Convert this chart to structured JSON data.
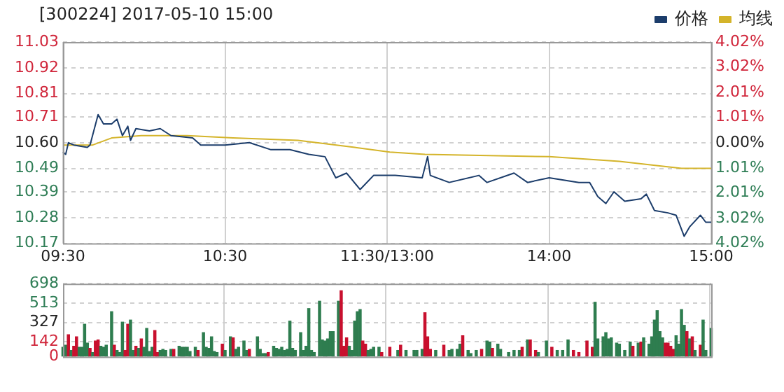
{
  "chart_data": [
    {
      "type": "line",
      "title": "[300224] 2017-05-10 15:00",
      "categories": [
        "09:30",
        null,
        null,
        null,
        null,
        null,
        null,
        null,
        null,
        null,
        null,
        null,
        null,
        null,
        null,
        null,
        null,
        null,
        null,
        null,
        null,
        null,
        null,
        null,
        null,
        null,
        null,
        null,
        null,
        null,
        null,
        null,
        null,
        null,
        null,
        null,
        null,
        null,
        null,
        null,
        null,
        null,
        null,
        null,
        null,
        null,
        null,
        null,
        null,
        null,
        null,
        null,
        null,
        null,
        null,
        null,
        null,
        null,
        null,
        null,
        "10:30",
        null,
        null,
        null,
        null,
        null,
        null,
        null,
        null,
        null,
        null,
        null,
        null,
        null,
        null,
        null,
        null,
        null,
        null,
        null,
        null,
        null,
        null,
        null,
        null,
        null,
        null,
        null,
        null,
        null,
        null,
        null,
        null,
        null,
        null,
        null,
        null,
        null,
        null,
        null,
        null,
        null,
        null,
        null,
        null,
        null,
        null,
        null,
        null,
        null,
        null,
        null,
        null,
        null,
        null,
        null,
        null,
        null,
        null,
        null,
        "11:30/13:00",
        null,
        null,
        null,
        null,
        null,
        null,
        null,
        null,
        null,
        null,
        null,
        null,
        null,
        null,
        null,
        null,
        null,
        null,
        null,
        null,
        null,
        null,
        null,
        null,
        null,
        null,
        null,
        null,
        null,
        null,
        null,
        null,
        null,
        null,
        null,
        null,
        null,
        null,
        null,
        null,
        null,
        null,
        null,
        null,
        null,
        null,
        null,
        null,
        null,
        null,
        null,
        null,
        null,
        null,
        null,
        null,
        null,
        null,
        null,
        "14:00",
        null,
        null,
        null,
        null,
        null,
        null,
        null,
        null,
        null,
        null,
        null,
        null,
        null,
        null,
        null,
        null,
        null,
        null,
        null,
        null,
        null,
        null,
        null,
        null,
        null,
        null,
        null,
        null,
        null,
        null,
        null,
        null,
        null,
        null,
        null,
        null,
        null,
        null,
        null,
        null,
        null,
        null,
        null,
        null,
        null,
        null,
        null,
        null,
        null,
        null,
        null,
        null,
        null,
        null,
        null,
        null,
        null,
        null,
        null,
        "15:00"
      ],
      "ylim": [
        10.17,
        11.03
      ],
      "yticks": [
        11.03,
        10.92,
        10.81,
        10.71,
        {
          "value": 10.6,
          "label": "10.60"
        },
        10.49,
        10.39,
        10.28,
        10.17
      ],
      "y2lim": [
        -4.02,
        4.02
      ],
      "y2ticks": [
        {
          "value": 4.02,
          "label": "4.02%"
        },
        {
          "value": 3.02,
          "label": "3.02%"
        },
        {
          "value": 2.01,
          "label": "2.01%"
        },
        {
          "value": 1.01,
          "label": "1.01%"
        },
        {
          "value": 0,
          "label": "0.00%"
        },
        {
          "value": -1.01,
          "label": "1.01%"
        },
        {
          "value": -2.01,
          "label": "2.01%"
        },
        {
          "value": -3.02,
          "label": "3.02%"
        },
        {
          "value": -4.02,
          "label": "4.02%"
        }
      ],
      "grid": true,
      "legend": "top right",
      "marker": "none",
      "series": [
        {
          "name": "价格",
          "color": "#1c3d6b",
          "values": [
            10.56,
            10.55,
            10.6,
            null,
            10.59,
            null,
            null,
            null,
            null,
            10.58,
            10.59,
            null,
            null,
            10.72,
            null,
            10.68,
            null,
            null,
            10.68,
            null,
            10.7,
            null,
            10.63,
            null,
            10.67,
            10.61,
            null,
            10.66,
            null,
            null,
            null,
            null,
            10.65,
            null,
            null,
            null,
            10.66,
            null,
            null,
            null,
            10.63,
            null,
            null,
            null,
            null,
            null,
            null,
            null,
            10.62,
            null,
            null,
            10.59,
            null,
            null,
            null,
            null,
            null,
            null,
            null,
            null,
            10.59,
            null,
            null,
            null,
            null,
            null,
            null,
            null,
            null,
            10.6,
            null,
            null,
            null,
            null,
            null,
            null,
            null,
            10.57,
            null,
            null,
            null,
            null,
            null,
            null,
            10.57,
            null,
            null,
            null,
            null,
            null,
            null,
            10.55,
            null,
            null,
            null,
            null,
            null,
            10.54,
            null,
            null,
            null,
            10.45,
            null,
            null,
            null,
            10.47,
            null,
            null,
            null,
            null,
            10.4,
            null,
            null,
            null,
            null,
            10.46,
            null,
            null,
            null,
            null,
            null,
            10.46,
            null,
            10.46,
            null,
            null,
            null,
            null,
            null,
            null,
            null,
            null,
            null,
            10.45,
            null,
            10.54,
            10.46,
            null,
            null,
            null,
            null,
            null,
            null,
            10.43,
            null,
            null,
            null,
            null,
            null,
            null,
            null,
            null,
            null,
            null,
            10.46,
            null,
            null,
            10.43,
            null,
            null,
            null,
            null,
            null,
            null,
            null,
            null,
            null,
            10.47,
            null,
            null,
            null,
            null,
            10.43,
            null,
            null,
            null,
            null,
            null,
            null,
            null,
            10.45,
            null,
            null,
            null,
            null,
            null,
            null,
            null,
            null,
            null,
            null,
            10.43,
            null,
            null,
            null,
            10.43,
            null,
            null,
            10.37,
            null,
            null,
            10.34,
            null,
            null,
            10.39,
            null,
            null,
            null,
            10.35,
            null,
            null,
            null,
            null,
            null,
            10.36,
            null,
            10.38,
            null,
            null,
            10.31,
            null,
            null,
            null,
            null,
            10.3,
            null,
            null,
            10.29,
            null,
            null,
            10.2,
            null,
            10.24,
            null,
            null,
            null,
            10.29,
            null,
            10.26,
            null,
            10.26
          ]
        },
        {
          "name": "均线",
          "color": "#d4b42a",
          "values": [
            10.59,
            null,
            null,
            null,
            null,
            null,
            null,
            null,
            null,
            null,
            null,
            10.59,
            null,
            null,
            null,
            null,
            null,
            null,
            10.62,
            null,
            null,
            null,
            null,
            null,
            null,
            null,
            null,
            null,
            null,
            10.63,
            null,
            null,
            null,
            null,
            null,
            null,
            null,
            null,
            null,
            null,
            null,
            null,
            null,
            null,
            null,
            null,
            10.63,
            null,
            null,
            null,
            null,
            null,
            null,
            null,
            null,
            null,
            null,
            null,
            null,
            null,
            null,
            null,
            null,
            10.62,
            null,
            null,
            null,
            null,
            null,
            null,
            null,
            null,
            null,
            null,
            null,
            null,
            null,
            null,
            null,
            null,
            null,
            null,
            null,
            null,
            null,
            null,
            null,
            10.61,
            null,
            null,
            null,
            null,
            null,
            null,
            null,
            null,
            null,
            null,
            null,
            null,
            null,
            null,
            null,
            null,
            null,
            null,
            null,
            null,
            10.58,
            null,
            null,
            null,
            null,
            null,
            null,
            null,
            null,
            null,
            null,
            null,
            null,
            10.56,
            null,
            null,
            null,
            null,
            null,
            null,
            null,
            null,
            null,
            null,
            null,
            null,
            10.55,
            null,
            null,
            null,
            null,
            null,
            null,
            null,
            null,
            null,
            null,
            null,
            null,
            null,
            null,
            null,
            null,
            null,
            null,
            null,
            null,
            null,
            null,
            null,
            null,
            null,
            null,
            null,
            null,
            null,
            null,
            null,
            null,
            null,
            null,
            null,
            null,
            null,
            null,
            null,
            null,
            null,
            null,
            null,
            null,
            null,
            10.54,
            null,
            null,
            null,
            null,
            null,
            null,
            null,
            null,
            null,
            null,
            null,
            null,
            null,
            null,
            null,
            null,
            null,
            null,
            null,
            null,
            null,
            null,
            null,
            null,
            null,
            10.52,
            null,
            null,
            null,
            null,
            null,
            null,
            null,
            null,
            null,
            null,
            null,
            null,
            null,
            null,
            null,
            null,
            null,
            null,
            null,
            null,
            null,
            null,
            10.49,
            null,
            null,
            null,
            null,
            null,
            null,
            null,
            null,
            null,
            null,
            10.49
          ]
        }
      ]
    },
    {
      "type": "bar",
      "categories": [
        null,
        null,
        null,
        null,
        null,
        null,
        null,
        null,
        null,
        null,
        null,
        null,
        null,
        null,
        null,
        null,
        null,
        null,
        null,
        null,
        null,
        null,
        null,
        null,
        null,
        null,
        null,
        null,
        null,
        null,
        null,
        null,
        null,
        null,
        null,
        null,
        null,
        null,
        null,
        null,
        null,
        null,
        null,
        null,
        null,
        null,
        null,
        null,
        null,
        null,
        null,
        null,
        null,
        null,
        null,
        null,
        null,
        null,
        null,
        null,
        null,
        null,
        null,
        null,
        null,
        null,
        null,
        null,
        null,
        null,
        null,
        null,
        null,
        null,
        null,
        null,
        null,
        null,
        null,
        null,
        null,
        null,
        null,
        null,
        null,
        null,
        null,
        null,
        null,
        null,
        null,
        null,
        null,
        null,
        null,
        null,
        null,
        null,
        null,
        null,
        null,
        null,
        null,
        null,
        null,
        null,
        null,
        null,
        null,
        null,
        null,
        null,
        null,
        null,
        null,
        null,
        null,
        null,
        null,
        null,
        null,
        null,
        null,
        null,
        null,
        null,
        null,
        null,
        null,
        null,
        null,
        null,
        null,
        null,
        null,
        null,
        null,
        null,
        null,
        null,
        null,
        null,
        null,
        null,
        null,
        null,
        null,
        null,
        null,
        null,
        null,
        null,
        null,
        null,
        null,
        null,
        null,
        null,
        null,
        null,
        null,
        null,
        null,
        null,
        null,
        null,
        null,
        null,
        null,
        null,
        null,
        null,
        null,
        null,
        null,
        null,
        null,
        null,
        null,
        null,
        null,
        null,
        null,
        null,
        null,
        null,
        null,
        null,
        null,
        null,
        null,
        null,
        null,
        null,
        null,
        null,
        null,
        null,
        null,
        null,
        null,
        null,
        null,
        null,
        null,
        null,
        null,
        null,
        null,
        null,
        null,
        null,
        null,
        null,
        null,
        null,
        null,
        null,
        null,
        null,
        null,
        null,
        null,
        null,
        null,
        null,
        null,
        null,
        null,
        null,
        null,
        null,
        null,
        null,
        null,
        null,
        null,
        null,
        null,
        null,
        null
      ],
      "ylim": [
        0,
        698
      ],
      "yticks": [
        0,
        142,
        327,
        513,
        698
      ],
      "grid": true,
      "values": [
        90,
        110,
        210,
        60,
        100,
        190,
        90,
        90,
        310,
        130,
        80,
        40,
        150,
        160,
        100,
        90,
        110,
        null,
        430,
        110,
        60,
        40,
        330,
        60,
        310,
        350,
        60,
        100,
        80,
        170,
        90,
        270,
        50,
        90,
        250,
        40,
        60,
        70,
        60,
        null,
        70,
        70,
        null,
        100,
        90,
        90,
        90,
        50,
        null,
        90,
        60,
        null,
        230,
        90,
        80,
        190,
        50,
        40,
        null,
        120,
        60,
        null,
        190,
        180,
        70,
        90,
        null,
        150,
        60,
        70,
        null,
        null,
        190,
        70,
        30,
        30,
        40,
        null,
        100,
        80,
        70,
        90,
        60,
        70,
        340,
        80,
        60,
        null,
        230,
        60,
        100,
        460,
        60,
        40,
        null,
        530,
        160,
        150,
        170,
        240,
        240,
        null,
        530,
        630,
        100,
        180,
        100,
        60,
        340,
        430,
        450,
        150,
        120,
        60,
        70,
        90,
        null,
        90,
        40,
        null,
        null,
        90,
        null,
        null,
        60,
        110,
        null,
        60,
        null,
        null,
        60,
        60,
        null,
        70,
        420,
        190,
        70,
        null,
        60,
        null,
        null,
        110,
        null,
        60,
        70,
        null,
        70,
        120,
        200,
        null,
        60,
        30,
        null,
        60,
        null,
        70,
        null,
        150,
        140,
        80,
        null,
        120,
        70,
        null,
        null,
        40,
        null,
        60,
        null,
        60,
        90,
        null,
        160,
        160,
        null,
        60,
        40,
        null,
        null,
        150,
        null,
        90,
        null,
        60,
        null,
        60,
        null,
        160,
        null,
        60,
        null,
        40,
        null,
        null,
        150,
        null,
        90,
        520,
        170,
        null,
        190,
        230,
        170,
        180,
        null,
        130,
        120,
        null,
        60,
        null,
        140,
        100,
        null,
        130,
        140,
        180,
        null,
        120,
        190,
        350,
        440,
        240,
        180,
        130,
        130,
        100,
        70,
        200,
        120,
        450,
        300,
        240,
        170,
        190,
        60,
        null,
        110,
        350,
        60,
        null,
        270
      ],
      "colors": [
        "#2e7d4f",
        "#2e7d4f",
        "#c8102e",
        "#2e7d4f",
        "#c8102e",
        "#c8102e",
        "#2e7d4f",
        "#2e7d4f",
        "#2e7d4f",
        "#2e7d4f",
        "#c8102e",
        "#2e7d4f",
        "#c8102e",
        "#c8102e",
        "#2e7d4f",
        "#2e7d4f",
        "#2e7d4f",
        null,
        "#2e7d4f",
        "#c8102e",
        "#2e7d4f",
        "#2e7d4f",
        "#2e7d4f",
        "#c8102e",
        "#c8102e",
        "#2e7d4f",
        "#2e7d4f",
        "#c8102e",
        "#2e7d4f",
        "#c8102e",
        "#2e7d4f",
        "#2e7d4f",
        "#2e7d4f",
        "#2e7d4f",
        "#c8102e",
        "#c8102e",
        "#2e7d4f",
        "#2e7d4f",
        "#2e7d4f",
        null,
        "#2e7d4f",
        "#c8102e",
        null,
        "#2e7d4f",
        "#2e7d4f",
        "#2e7d4f",
        "#2e7d4f",
        "#2e7d4f",
        null,
        "#2e7d4f",
        "#c8102e",
        null,
        "#2e7d4f",
        "#2e7d4f",
        "#2e7d4f",
        "#2e7d4f",
        "#2e7d4f",
        "#2e7d4f",
        null,
        "#c8102e",
        "#2e7d4f",
        null,
        "#2e7d4f",
        "#c8102e",
        "#2e7d4f",
        "#2e7d4f",
        null,
        "#2e7d4f",
        "#2e7d4f",
        "#c8102e",
        null,
        null,
        "#2e7d4f",
        "#2e7d4f",
        "#2e7d4f",
        "#2e7d4f",
        "#c8102e",
        null,
        "#2e7d4f",
        "#2e7d4f",
        "#2e7d4f",
        "#2e7d4f",
        "#2e7d4f",
        "#2e7d4f",
        "#2e7d4f",
        "#2e7d4f",
        "#2e7d4f",
        null,
        "#2e7d4f",
        "#2e7d4f",
        "#2e7d4f",
        "#2e7d4f",
        "#2e7d4f",
        "#2e7d4f",
        null,
        "#2e7d4f",
        "#2e7d4f",
        "#2e7d4f",
        "#2e7d4f",
        "#2e7d4f",
        "#2e7d4f",
        null,
        "#2e7d4f",
        "#c8102e",
        "#c8102e",
        "#c8102e",
        "#2e7d4f",
        "#2e7d4f",
        "#2e7d4f",
        "#2e7d4f",
        "#2e7d4f",
        "#c8102e",
        "#c8102e",
        "#2e7d4f",
        "#2e7d4f",
        "#2e7d4f",
        null,
        "#2e7d4f",
        "#c8102e",
        null,
        null,
        "#c8102e",
        null,
        null,
        "#2e7d4f",
        "#c8102e",
        null,
        "#2e7d4f",
        null,
        null,
        "#2e7d4f",
        "#2e7d4f",
        null,
        "#2e7d4f",
        "#c8102e",
        "#c8102e",
        "#c8102e",
        null,
        "#2e7d4f",
        null,
        null,
        "#c8102e",
        null,
        "#2e7d4f",
        "#2e7d4f",
        null,
        "#2e7d4f",
        "#2e7d4f",
        "#c8102e",
        null,
        "#2e7d4f",
        "#2e7d4f",
        null,
        "#2e7d4f",
        null,
        "#c8102e",
        null,
        "#2e7d4f",
        "#2e7d4f",
        "#c8102e",
        null,
        "#2e7d4f",
        "#2e7d4f",
        null,
        null,
        "#2e7d4f",
        null,
        "#2e7d4f",
        null,
        "#2e7d4f",
        "#c8102e",
        null,
        "#2e7d4f",
        "#c8102e",
        null,
        "#c8102e",
        "#2e7d4f",
        null,
        null,
        "#2e7d4f",
        null,
        "#c8102e",
        null,
        "#2e7d4f",
        null,
        "#2e7d4f",
        null,
        "#2e7d4f",
        null,
        "#c8102e",
        null,
        "#c8102e",
        null,
        null,
        "#c8102e",
        null,
        "#c8102e",
        "#2e7d4f",
        "#2e7d4f",
        null,
        "#2e7d4f",
        "#2e7d4f",
        "#2e7d4f",
        "#2e7d4f",
        null,
        "#2e7d4f",
        "#2e7d4f",
        null,
        "#2e7d4f",
        null,
        "#2e7d4f",
        "#c8102e",
        null,
        "#2e7d4f",
        "#c8102e",
        "#2e7d4f",
        null,
        "#2e7d4f",
        "#2e7d4f",
        "#2e7d4f",
        "#2e7d4f",
        "#2e7d4f",
        "#2e7d4f",
        "#c8102e",
        "#c8102e",
        "#c8102e",
        "#c8102e",
        "#2e7d4f",
        "#2e7d4f",
        "#2e7d4f",
        "#2e7d4f",
        "#c8102e",
        "#2e7d4f",
        "#c8102e",
        "#2e7d4f",
        null,
        "#c8102e",
        "#2e7d4f",
        "#2e7d4f",
        null,
        "#2e7d4f"
      ]
    }
  ]
}
